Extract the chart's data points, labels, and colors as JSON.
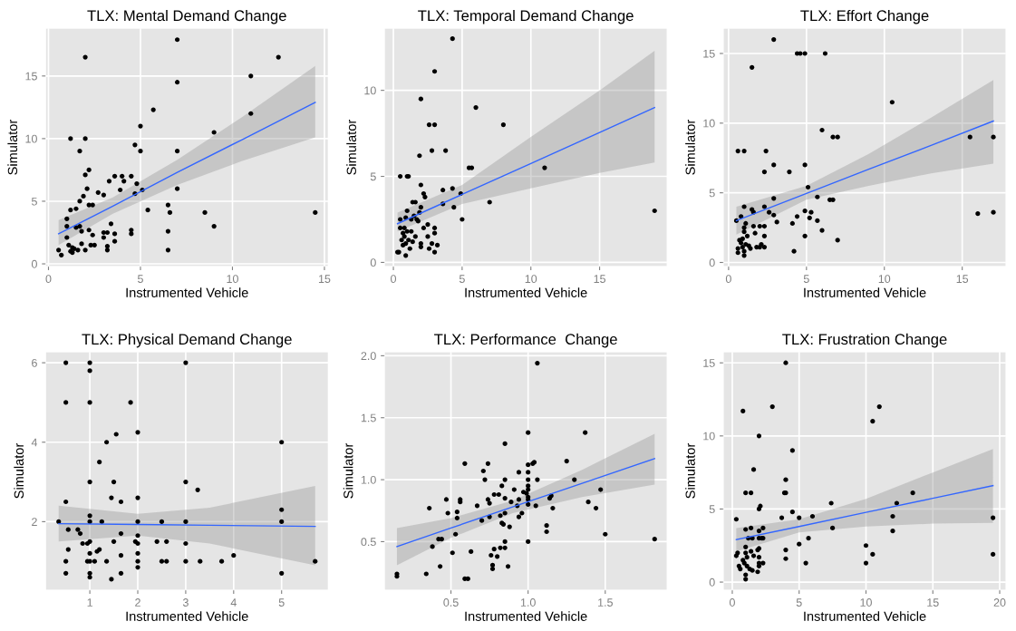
{
  "chart_data": [
    {
      "type": "scatter",
      "title": "TLX: Mental Demand Change",
      "xlabel": "Instrumented Vehicle",
      "ylabel": "Simulator",
      "xlim": [
        -0.15,
        15.2
      ],
      "ylim": [
        -0.2,
        18.8
      ],
      "xticks": [
        0,
        5,
        10,
        15
      ],
      "yticks": [
        0,
        5,
        10,
        15
      ],
      "grid": true,
      "series": [
        {
          "marker": "circle",
          "color": "#000000",
          "x": [
            0.55,
            0.7,
            1.0,
            1.0,
            1.0,
            1.1,
            1.2,
            1.2,
            1.2,
            1.3,
            1.3,
            1.4,
            1.5,
            1.5,
            1.6,
            1.7,
            1.7,
            1.7,
            1.8,
            1.8,
            1.9,
            2.0,
            2.0,
            2.0,
            2.1,
            2.0,
            2.2,
            2.2,
            2.2,
            2.3,
            2.4,
            2.4,
            2.5,
            2.7,
            3.0,
            3.0,
            3.0,
            3.2,
            3.2,
            3.2,
            3.3,
            3.4,
            3.6,
            3.6,
            3.6,
            3.9,
            4.0,
            4.1,
            4.5,
            4.5,
            4.5,
            4.7,
            4.7,
            4.8,
            5.0,
            5.0,
            5.1,
            5.4,
            5.7,
            6.5,
            6.5,
            6.5,
            6.6,
            7.0,
            7.0,
            7.0,
            7.0,
            8.5,
            9.0,
            9.0,
            11.0,
            11.0,
            12.5,
            14.5
          ],
          "values": [
            1.1,
            0.7,
            3.6,
            2.1,
            3.0,
            1.5,
            10.0,
            4.3,
            1.0,
            1.3,
            0.9,
            1.2,
            4.4,
            2.9,
            1.1,
            9.0,
            5.0,
            3.0,
            1.6,
            2.6,
            5.4,
            16.5,
            10.0,
            7.1,
            6.0,
            1.1,
            7.5,
            4.7,
            2.7,
            1.5,
            4.7,
            2.3,
            1.5,
            5.7,
            5.5,
            2.5,
            2.1,
            1.4,
            1.1,
            2.5,
            6.6,
            3.2,
            1.8,
            2.4,
            7.0,
            5.9,
            7.0,
            6.6,
            7.0,
            2.4,
            2.7,
            5.6,
            9.5,
            6.4,
            11.0,
            9.0,
            5.9,
            4.3,
            12.3,
            4.7,
            2.6,
            1.1,
            4.1,
            17.9,
            14.5,
            9.0,
            6.0,
            4.1,
            10.5,
            3.0,
            15.0,
            12.0,
            16.5,
            4.1
          ]
        },
        {
          "type": "line",
          "color": "#3366ff",
          "x": [
            0.55,
            3.5,
            7,
            10.5,
            14.5
          ],
          "values": [
            2.4,
            4.6,
            7.3,
            9.9,
            12.9
          ],
          "lower": [
            1.5,
            4.0,
            6.3,
            8.2,
            10.1
          ],
          "upper": [
            3.5,
            5.3,
            8.3,
            11.7,
            15.8
          ]
        }
      ]
    },
    {
      "type": "scatter",
      "title": "TLX: Temporal Demand Change",
      "xlabel": "Instrumented Vehicle",
      "ylabel": "Simulator",
      "xlim": [
        -0.64,
        19.9
      ],
      "ylim": [
        -0.23,
        13.6
      ],
      "xticks": [
        0,
        5,
        10,
        15
      ],
      "yticks": [
        0,
        5,
        10
      ],
      "grid": true,
      "series": [
        {
          "marker": "circle",
          "color": "#000000",
          "x": [
            0.3,
            0.4,
            0.5,
            0.5,
            0.5,
            0.6,
            0.7,
            0.7,
            0.8,
            0.8,
            0.9,
            0.9,
            0.9,
            1.0,
            1.0,
            1.0,
            1.1,
            1.1,
            1.2,
            1.3,
            1.3,
            1.4,
            1.4,
            1.5,
            1.6,
            1.6,
            1.7,
            1.8,
            1.9,
            1.9,
            2.0,
            2.0,
            2.0,
            2.0,
            2.0,
            2.2,
            2.2,
            2.3,
            2.5,
            2.5,
            2.6,
            2.6,
            2.8,
            2.8,
            3.0,
            3.0,
            3.0,
            3.0,
            3.0,
            3.2,
            3.6,
            3.6,
            3.8,
            4.3,
            4.3,
            4.4,
            4.9,
            5.0,
            5.5,
            5.7,
            6.0,
            7.0,
            8.0,
            11.0,
            19.0
          ],
          "values": [
            0.6,
            0.6,
            5.0,
            2.5,
            2.0,
            1.3,
            1.7,
            1.0,
            1.5,
            2.0,
            2.6,
            1.1,
            0.4,
            3.0,
            5.0,
            1.8,
            5.0,
            1.3,
            0.8,
            2.5,
            1.8,
            3.5,
            1.2,
            2.7,
            3.5,
            1.5,
            2.5,
            2.4,
            6.2,
            2.9,
            9.5,
            4.5,
            3.2,
            1.1,
            0.9,
            4.0,
            2.0,
            3.8,
            2.2,
            1.5,
            8.0,
            0.8,
            6.5,
            1.1,
            11.1,
            8.0,
            2.0,
            1.7,
            0.6,
            1.0,
            3.4,
            4.2,
            6.5,
            13.0,
            4.3,
            3.2,
            4.0,
            2.5,
            5.5,
            5.5,
            9.0,
            3.5,
            8.0,
            5.5,
            3.0
          ]
        },
        {
          "type": "line",
          "color": "#3366ff",
          "x": [
            0.3,
            5,
            10,
            15,
            19
          ],
          "values": [
            2.25,
            3.95,
            5.75,
            7.55,
            9.0
          ],
          "lower": [
            1.8,
            3.4,
            4.3,
            5.2,
            5.8
          ],
          "upper": [
            2.9,
            4.5,
            7.3,
            10.0,
            12.3
          ]
        }
      ]
    },
    {
      "type": "scatter",
      "title": "TLX: Effort Change",
      "xlabel": "Instrumented Vehicle",
      "ylabel": "Simulator",
      "xlim": [
        -0.33,
        17.8
      ],
      "ylim": [
        -0.28,
        16.8
      ],
      "xticks": [
        0,
        5,
        10,
        15
      ],
      "yticks": [
        0,
        5,
        10,
        15
      ],
      "grid": true,
      "series": [
        {
          "marker": "circle",
          "color": "#000000",
          "x": [
            0.5,
            0.6,
            0.6,
            0.6,
            0.7,
            0.8,
            0.8,
            0.9,
            0.9,
            1.0,
            1.0,
            1.0,
            1.0,
            1.0,
            1.0,
            1.1,
            1.1,
            1.2,
            1.3,
            1.4,
            1.5,
            1.5,
            1.6,
            1.6,
            1.7,
            1.8,
            2.0,
            2.0,
            2.1,
            2.3,
            2.3,
            2.3,
            2.3,
            2.3,
            2.4,
            2.6,
            2.9,
            2.9,
            2.9,
            2.9,
            3.1,
            3.9,
            4.1,
            4.2,
            4.4,
            4.4,
            4.6,
            4.9,
            4.9,
            4.9,
            4.9,
            5.1,
            5.2,
            5.3,
            5.7,
            5.7,
            6.0,
            6.0,
            6.2,
            6.5,
            6.7,
            6.7,
            7.0,
            7.0,
            10.5,
            15.5,
            16.0,
            17.0,
            17.0
          ],
          "values": [
            3.0,
            8.0,
            0.7,
            1.0,
            1.6,
            3.3,
            1.4,
            1.1,
            1.7,
            8.0,
            4.0,
            2.5,
            2.2,
            0.5,
            0.8,
            1.3,
            2.8,
            1.9,
            1.2,
            1.0,
            14.0,
            3.8,
            2.6,
            3.6,
            2.1,
            1.1,
            2.6,
            1.1,
            1.3,
            6.5,
            4.0,
            2.6,
            1.9,
            1.1,
            8.0,
            3.6,
            16.0,
            7.0,
            4.6,
            3.4,
            2.9,
            6.5,
            2.8,
            0.8,
            3.3,
            15.0,
            15.0,
            15.0,
            7.0,
            3.7,
            1.9,
            5.4,
            3.2,
            3.6,
            4.7,
            3.0,
            9.5,
            2.3,
            15.0,
            4.5,
            4.5,
            9.0,
            9.0,
            1.6,
            11.5,
            9.0,
            3.5,
            9.0,
            3.6
          ]
        },
        {
          "type": "line",
          "color": "#3366ff",
          "x": [
            0.5,
            5,
            9,
            13,
            17
          ],
          "values": [
            3.0,
            4.95,
            6.7,
            8.4,
            10.15
          ],
          "lower": [
            2.0,
            4.5,
            5.5,
            6.4,
            7.1
          ],
          "upper": [
            4.0,
            5.5,
            7.8,
            10.4,
            13.1
          ]
        }
      ]
    },
    {
      "type": "scatter",
      "title": "TLX: Physical Demand Change",
      "xlabel": "Instrumented Vehicle",
      "ylabel": "Simulator",
      "xlim": [
        0.08,
        5.97
      ],
      "ylim": [
        0.28,
        6.27
      ],
      "xticks": [
        1,
        2,
        3,
        4,
        5
      ],
      "yticks": [
        2,
        4,
        6
      ],
      "grid": true,
      "series": [
        {
          "marker": "circle",
          "color": "#000000",
          "x": [
            0.35,
            0.5,
            0.5,
            0.5,
            0.5,
            0.5,
            0.55,
            0.55,
            0.75,
            0.8,
            0.85,
            0.95,
            0.95,
            1.0,
            1.0,
            1.0,
            1.0,
            1.0,
            1.0,
            1.0,
            1.0,
            1.0,
            1.0,
            1.0,
            1.1,
            1.15,
            1.2,
            1.2,
            1.25,
            1.35,
            1.35,
            1.45,
            1.45,
            1.5,
            1.5,
            1.55,
            1.65,
            1.65,
            1.65,
            1.65,
            1.85,
            1.95,
            2.0,
            2.0,
            2.0,
            2.0,
            2.0,
            2.0,
            2.0,
            2.0,
            2.4,
            2.5,
            2.5,
            2.6,
            2.6,
            3.0,
            3.0,
            3.0,
            3.0,
            3.0,
            3.25,
            3.3,
            3.75,
            4.0,
            5.0,
            5.0,
            5.0,
            5.0,
            5.7
          ],
          "values": [
            2.0,
            6.0,
            5.0,
            2.5,
            1.0,
            0.7,
            1.8,
            1.3,
            1.8,
            1.7,
            1.45,
            1.45,
            1.0,
            6.0,
            5.8,
            5.0,
            3.0,
            2.15,
            2.0,
            1.5,
            1.2,
            1.0,
            0.7,
            0.6,
            1.0,
            1.25,
            3.5,
            1.3,
            2.0,
            4.0,
            1.0,
            2.6,
            0.55,
            3.0,
            1.5,
            4.2,
            2.5,
            1.7,
            1.15,
            0.7,
            5.0,
            1.5,
            4.25,
            2.6,
            2.0,
            1.65,
            1.45,
            1.2,
            1.0,
            0.85,
            1.5,
            2.0,
            1.0,
            1.5,
            1.0,
            6.0,
            3.0,
            2.0,
            1.45,
            1.0,
            2.8,
            1.0,
            1.0,
            1.15,
            4.0,
            2.3,
            2.0,
            0.7,
            1.0
          ]
        },
        {
          "type": "line",
          "color": "#3366ff",
          "x": [
            0.35,
            2,
            3.5,
            5.7
          ],
          "values": [
            1.95,
            1.93,
            1.91,
            1.88
          ],
          "lower": [
            1.5,
            1.65,
            1.45,
            0.9
          ],
          "upper": [
            2.4,
            2.2,
            2.35,
            2.9
          ]
        }
      ]
    },
    {
      "type": "scatter",
      "title": "TLX: Performance  Change",
      "xlabel": "Instrumented Vehicle",
      "ylabel": "Simulator",
      "xlim": [
        0.07,
        1.9
      ],
      "ylim": [
        0.11,
        2.03
      ],
      "xticks": [
        {
          "value": 0.5,
          "label": "0.5"
        },
        {
          "value": 1.0,
          "label": "1.0"
        },
        {
          "value": 1.5,
          "label": "1.5"
        }
      ],
      "yticks": [
        {
          "value": 0.5,
          "label": "0.5"
        },
        {
          "value": 1.0,
          "label": "1.0"
        },
        {
          "value": 1.5,
          "label": "1.5"
        },
        {
          "value": 2.0,
          "label": "2.0"
        }
      ],
      "grid": true,
      "series": [
        {
          "marker": "circle",
          "color": "#000000",
          "x": [
            0.15,
            0.15,
            0.34,
            0.36,
            0.38,
            0.42,
            0.43,
            0.44,
            0.47,
            0.48,
            0.51,
            0.53,
            0.54,
            0.54,
            0.56,
            0.56,
            0.59,
            0.59,
            0.61,
            0.63,
            0.67,
            0.7,
            0.71,
            0.72,
            0.74,
            0.74,
            0.75,
            0.75,
            0.76,
            0.77,
            0.77,
            0.78,
            0.78,
            0.8,
            0.81,
            0.82,
            0.82,
            0.83,
            0.83,
            0.84,
            0.85,
            0.85,
            0.85,
            0.85,
            0.85,
            0.85,
            0.87,
            0.88,
            0.89,
            0.91,
            0.93,
            0.94,
            0.94,
            0.94,
            0.96,
            0.97,
            0.99,
            1.0,
            1.0,
            1.0,
            1.0,
            1.0,
            1.0,
            1.0,
            1.0,
            1.0,
            1.0,
            1.03,
            1.04,
            1.05,
            1.06,
            1.06,
            1.12,
            1.12,
            1.14,
            1.15,
            1.16,
            1.25,
            1.3,
            1.37,
            1.39,
            1.44,
            1.47,
            1.5,
            1.82
          ],
          "values": [
            0.24,
            0.22,
            0.24,
            0.77,
            0.46,
            0.52,
            0.3,
            0.52,
            0.84,
            0.73,
            0.41,
            0.56,
            0.69,
            0.74,
            0.82,
            0.84,
            0.2,
            1.13,
            0.2,
            0.42,
            0.79,
            0.67,
            1.07,
            1.0,
            1.13,
            0.84,
            0.81,
            0.7,
            0.39,
            0.28,
            0.31,
            0.88,
            0.44,
            0.38,
            0.88,
            0.45,
            0.71,
            0.65,
            0.95,
            0.64,
            1.29,
            1.0,
            0.85,
            0.73,
            0.5,
            0.45,
            0.3,
            0.62,
            0.82,
            0.92,
            0.79,
            1.06,
            0.84,
            0.7,
            0.73,
            0.9,
            0.89,
            1.38,
            1.12,
            1.06,
            1.0,
            0.95,
            0.92,
            0.86,
            0.84,
            0.8,
            0.5,
            1.13,
            1.14,
            0.79,
            1.94,
            1.0,
            0.63,
            0.58,
            0.85,
            0.87,
            0.77,
            1.15,
            1.0,
            1.38,
            0.82,
            0.77,
            0.92,
            0.56,
            0.52
          ]
        },
        {
          "type": "line",
          "color": "#3366ff",
          "x": [
            0.15,
            0.5,
            0.9,
            1.35,
            1.82
          ],
          "values": [
            0.46,
            0.61,
            0.78,
            0.97,
            1.17
          ],
          "lower": [
            0.31,
            0.53,
            0.73,
            0.86,
            0.96
          ],
          "upper": [
            0.61,
            0.69,
            0.83,
            1.08,
            1.37
          ]
        }
      ]
    },
    {
      "type": "scatter",
      "title": "TLX: Frustration Change",
      "xlabel": "Instrumented Vehicle",
      "ylabel": "Simulator",
      "xlim": [
        -0.66,
        20.46
      ],
      "ylim": [
        -0.54,
        15.74
      ],
      "xticks": [
        0,
        5,
        10,
        15,
        20
      ],
      "yticks": [
        0,
        5,
        10,
        15
      ],
      "grid": true,
      "series": [
        {
          "marker": "circle",
          "color": "#000000",
          "x": [
            0.3,
            0.3,
            0.4,
            0.5,
            0.6,
            0.8,
            0.8,
            0.9,
            1.0,
            1.0,
            1.0,
            1.0,
            1.0,
            1.0,
            1.1,
            1.1,
            1.2,
            1.3,
            1.4,
            1.4,
            1.4,
            1.5,
            1.5,
            1.6,
            1.6,
            1.9,
            1.9,
            2.0,
            2.0,
            2.0,
            2.0,
            2.0,
            2.0,
            2.0,
            2.0,
            2.1,
            2.2,
            2.3,
            2.3,
            2.3,
            3.0,
            3.7,
            3.9,
            4.0,
            4.0,
            4.0,
            4.0,
            4.0,
            4.5,
            4.5,
            5.0,
            5.0,
            5.5,
            5.7,
            6.0,
            7.4,
            7.5,
            10.0,
            10.0,
            10.5,
            10.5,
            11.0,
            12.0,
            12.0,
            12.3,
            13.5,
            19.5,
            19.5
          ],
          "values": [
            1.8,
            4.3,
            2.0,
            1.1,
            0.9,
            11.7,
            1.5,
            1.3,
            6.1,
            3.6,
            2.4,
            2.0,
            0.5,
            0.2,
            1.7,
            1.1,
            3.0,
            0.9,
            6.1,
            3.7,
            2.1,
            3.0,
            0.8,
            7.7,
            1.8,
            0.7,
            2.2,
            10.0,
            5.0,
            3.5,
            3.0,
            2.3,
            1.7,
            1.3,
            1.1,
            5.2,
            3.0,
            3.7,
            3.0,
            1.3,
            12.0,
            4.4,
            6.1,
            15.0,
            7.0,
            6.1,
            2.2,
            1.6,
            9.0,
            4.8,
            4.4,
            2.6,
            1.3,
            3.0,
            4.5,
            5.4,
            3.7,
            2.5,
            1.3,
            11.0,
            1.9,
            12.0,
            4.5,
            3.5,
            5.4,
            6.1,
            4.4,
            1.9
          ]
        },
        {
          "type": "line",
          "color": "#3366ff",
          "x": [
            0.3,
            5,
            10,
            15,
            19.5
          ],
          "values": [
            2.9,
            3.8,
            4.77,
            5.73,
            6.6
          ],
          "lower": [
            2.1,
            3.4,
            3.8,
            4.0,
            4.05
          ],
          "upper": [
            3.7,
            4.3,
            5.7,
            7.5,
            9.1
          ]
        }
      ]
    }
  ]
}
